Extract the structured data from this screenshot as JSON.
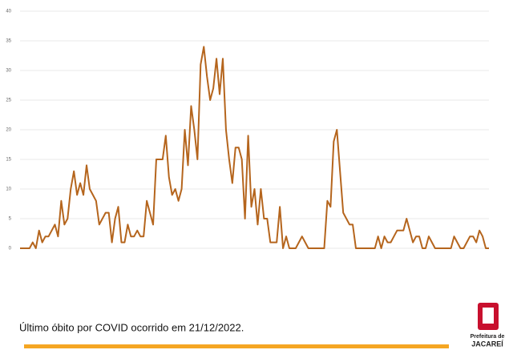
{
  "chart_data": {
    "type": "line",
    "values": [
      0,
      0,
      0,
      0,
      1,
      0,
      3,
      1,
      2,
      2,
      3,
      4,
      2,
      8,
      4,
      5,
      10,
      13,
      9,
      11,
      9,
      14,
      10,
      9,
      8,
      4,
      5,
      6,
      6,
      1,
      5,
      7,
      1,
      1,
      4,
      2,
      2,
      3,
      2,
      2,
      8,
      6,
      4,
      15,
      15,
      15,
      19,
      12,
      9,
      10,
      8,
      10,
      20,
      14,
      24,
      20,
      15,
      31,
      34,
      29,
      25,
      27,
      32,
      26,
      32,
      20,
      15,
      11,
      17,
      17,
      15,
      5,
      19,
      7,
      10,
      4,
      10,
      5,
      5,
      1,
      1,
      1,
      7,
      0,
      2,
      0,
      0,
      0,
      1,
      2,
      1,
      0,
      0,
      0,
      0,
      0,
      0,
      8,
      7,
      18,
      20,
      13,
      6,
      5,
      4,
      4,
      0,
      0,
      0,
      0,
      0,
      0,
      0,
      2,
      0,
      2,
      1,
      1,
      2,
      3,
      3,
      3,
      5,
      3,
      1,
      2,
      2,
      0,
      0,
      2,
      1,
      0,
      0,
      0,
      0,
      0,
      0,
      2,
      1,
      0,
      0,
      1,
      2,
      2,
      1,
      3,
      2,
      0,
      0
    ],
    "color": "#b5651d",
    "ylim": [
      0,
      40
    ],
    "yticks": [
      0,
      5,
      10,
      15,
      20,
      25,
      30,
      35,
      40
    ],
    "grid": true,
    "annotation": "Último óbito por COVID ocorrido em 21/12/2022.",
    "logo_top": "Prefeitura de",
    "logo_bottom": "JACAREÍ"
  }
}
